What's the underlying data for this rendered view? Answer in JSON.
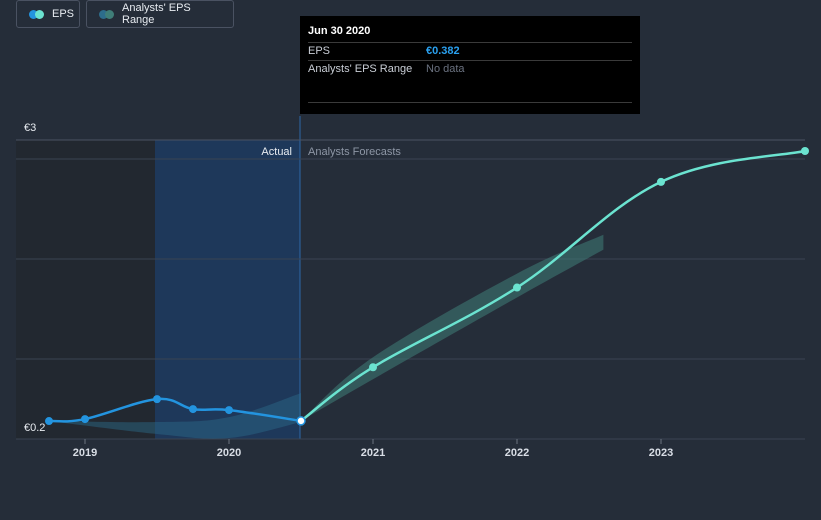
{
  "chart_data": {
    "type": "line",
    "x_ticks": [
      "2019",
      "2020",
      "2021",
      "2022",
      "2023"
    ],
    "y_ticks": [
      "€3",
      "€0.2"
    ],
    "divider_date": "Jun 30 2020",
    "section_labels": {
      "actual": "Actual",
      "forecast": "Analysts Forecasts"
    },
    "series": [
      {
        "name": "EPS",
        "kind": "actual",
        "points": [
          {
            "x": 2018.75,
            "y": 0.38
          },
          {
            "x": 2019.0,
            "y": 0.4
          },
          {
            "x": 2019.5,
            "y": 0.6
          },
          {
            "x": 2019.75,
            "y": 0.5
          },
          {
            "x": 2020.0,
            "y": 0.49
          },
          {
            "x": 2020.5,
            "y": 0.382
          }
        ]
      },
      {
        "name": "EPS",
        "kind": "forecast",
        "points": [
          {
            "x": 2020.5,
            "y": 0.382
          },
          {
            "x": 2021.0,
            "y": 0.92
          },
          {
            "x": 2022.0,
            "y": 1.72
          },
          {
            "x": 2023.0,
            "y": 2.78
          },
          {
            "x": 2024.0,
            "y": 3.09
          }
        ]
      }
    ],
    "forecast_range": {
      "upper": [
        {
          "x": 2020.5,
          "y": 0.382
        },
        {
          "x": 2021.0,
          "y": 1.02
        },
        {
          "x": 2022.0,
          "y": 1.86
        },
        {
          "x": 2022.6,
          "y": 2.25
        }
      ],
      "lower": [
        {
          "x": 2022.6,
          "y": 2.1
        },
        {
          "x": 2022.0,
          "y": 1.62
        },
        {
          "x": 2021.0,
          "y": 0.8
        },
        {
          "x": 2020.5,
          "y": 0.382
        }
      ]
    },
    "past_range": {
      "upper": [
        {
          "x": 2018.75,
          "y": 0.38
        },
        {
          "x": 2019.5,
          "y": 0.37
        },
        {
          "x": 2020.0,
          "y": 0.42
        },
        {
          "x": 2020.5,
          "y": 0.66
        }
      ],
      "lower": [
        {
          "x": 2020.5,
          "y": 0.37
        },
        {
          "x": 2020.0,
          "y": 0.21
        },
        {
          "x": 2019.5,
          "y": 0.25
        },
        {
          "x": 2018.75,
          "y": 0.38
        }
      ]
    },
    "legend": [
      "EPS",
      "Analysts' EPS Range"
    ],
    "colors": {
      "actual_line": "#2394df",
      "forecast_line": "#6be3d0",
      "forecast_band": "#3f7e78",
      "past_highlight": "#1e3a5f",
      "gridline": "#3a4352",
      "background": "#252d39"
    }
  },
  "tooltip": {
    "date": "Jun 30 2020",
    "rows": [
      {
        "label": "EPS",
        "value": "€0.382"
      },
      {
        "label": "Analysts' EPS Range",
        "value": "No data"
      }
    ]
  },
  "legend_items": [
    {
      "label": "EPS",
      "colors": [
        "#2394df",
        "#6be3d0"
      ]
    },
    {
      "label": "Analysts' EPS Range",
      "colors": [
        "#2d6d8c",
        "#3f7e78"
      ]
    }
  ]
}
